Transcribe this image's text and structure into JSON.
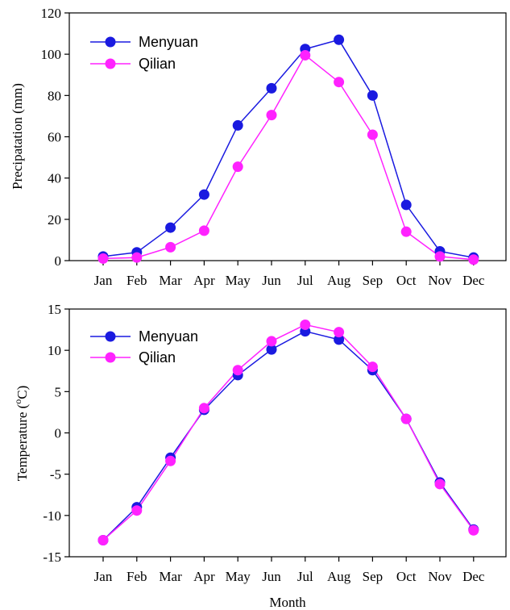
{
  "chart_data": [
    {
      "type": "line",
      "categories": [
        "Jan",
        "Feb",
        "Mar",
        "Apr",
        "May",
        "Jun",
        "Jul",
        "Aug",
        "Sep",
        "Oct",
        "Nov",
        "Dec"
      ],
      "series": [
        {
          "name": "Menyuan",
          "color": "#1a1ae0",
          "values": [
            2,
            4,
            16,
            32,
            65.5,
            83.5,
            102.5,
            107,
            80,
            27,
            4.5,
            1.5
          ]
        },
        {
          "name": "Qilian",
          "color": "#ff22ff",
          "values": [
            1,
            1.5,
            6.5,
            14.5,
            45.5,
            70.5,
            99.5,
            86.5,
            61,
            14,
            2,
            0.5
          ]
        }
      ],
      "xlabel": "",
      "ylabel": "Precipatation (mm)",
      "ylim": [
        0,
        120
      ],
      "yticks": [
        "0",
        "20",
        "40",
        "60",
        "80",
        "100",
        "120"
      ],
      "legend_position": "top-left",
      "grid": false
    },
    {
      "type": "line",
      "categories": [
        "Jan",
        "Feb",
        "Mar",
        "Apr",
        "May",
        "Jun",
        "Jul",
        "Aug",
        "Sep",
        "Oct",
        "Nov",
        "Dec"
      ],
      "series": [
        {
          "name": "Menyuan",
          "color": "#1a1ae0",
          "values": [
            -13,
            -9,
            -3,
            2.8,
            7,
            10.1,
            12.3,
            11.3,
            7.6,
            1.7,
            -6,
            -11.7
          ]
        },
        {
          "name": "Qilian",
          "color": "#ff22ff",
          "values": [
            -13,
            -9.4,
            -3.4,
            3,
            7.6,
            11.1,
            13.1,
            12.2,
            8,
            1.7,
            -6.2,
            -11.8
          ]
        }
      ],
      "xlabel": "Month",
      "ylabel_main": "Temperature (",
      "ylabel_sup": "o",
      "ylabel_tail": "C)",
      "ylim": [
        -15,
        15
      ],
      "yticks": [
        "-15",
        "-10",
        "-5",
        "0",
        "5",
        "10",
        "15"
      ],
      "legend_position": "top-left",
      "grid": false
    }
  ]
}
